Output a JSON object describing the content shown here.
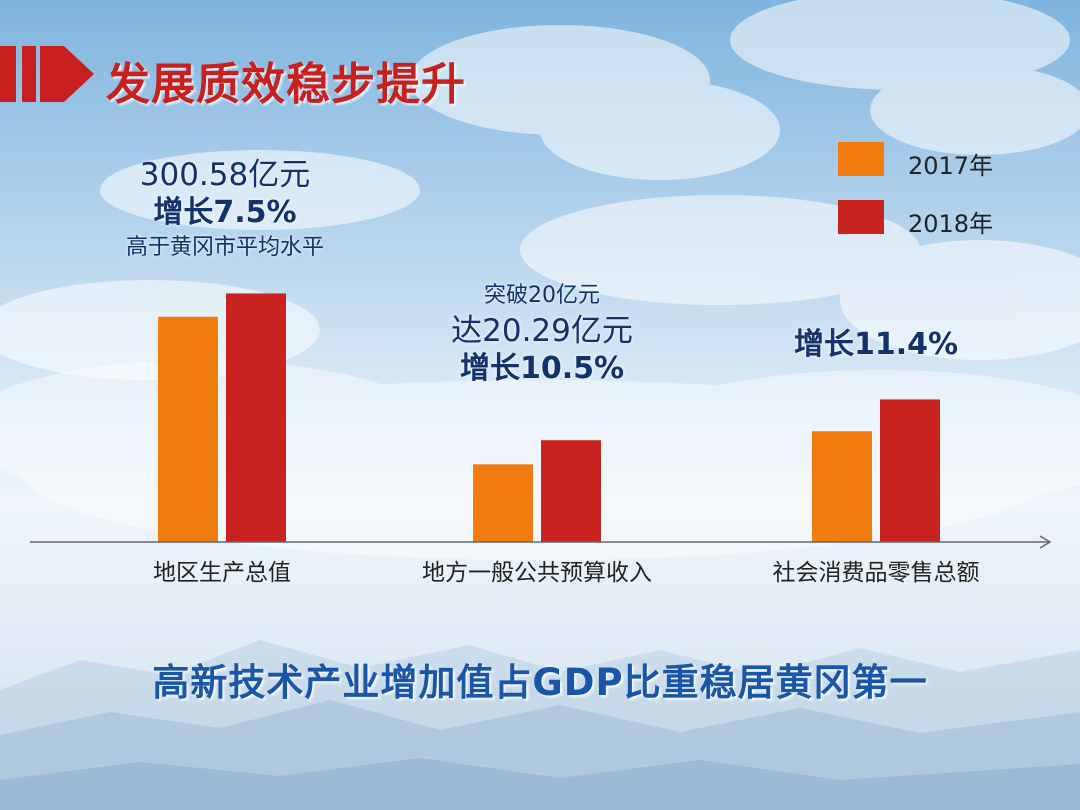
{
  "page": {
    "title": "发展质效稳步提升",
    "footer": "高新技术产业增加值占GDP比重稳居黄冈第一"
  },
  "chart_data": {
    "type": "bar",
    "categories": [
      "地区生产总值",
      "地方一般公共预算收入",
      "社会消费品零售总额"
    ],
    "series": [
      {
        "name": "2017年",
        "color": "#f07c10",
        "values": [
          0.85,
          0.293,
          0.418
        ]
      },
      {
        "name": "2018年",
        "color": "#c8231f",
        "values": [
          0.938,
          0.384,
          0.538
        ]
      }
    ],
    "ylim": [
      0,
      1
    ],
    "grid": false,
    "legend_position": "top-right",
    "annotations": [
      {
        "lines": [
          "300.58亿元",
          "增长7.5%",
          "高于黄冈市平均水平"
        ]
      },
      {
        "lines": [
          "突破20亿元",
          "达20.29亿元",
          "增长10.5%"
        ]
      },
      {
        "lines": [
          "增长11.4%"
        ]
      }
    ]
  }
}
